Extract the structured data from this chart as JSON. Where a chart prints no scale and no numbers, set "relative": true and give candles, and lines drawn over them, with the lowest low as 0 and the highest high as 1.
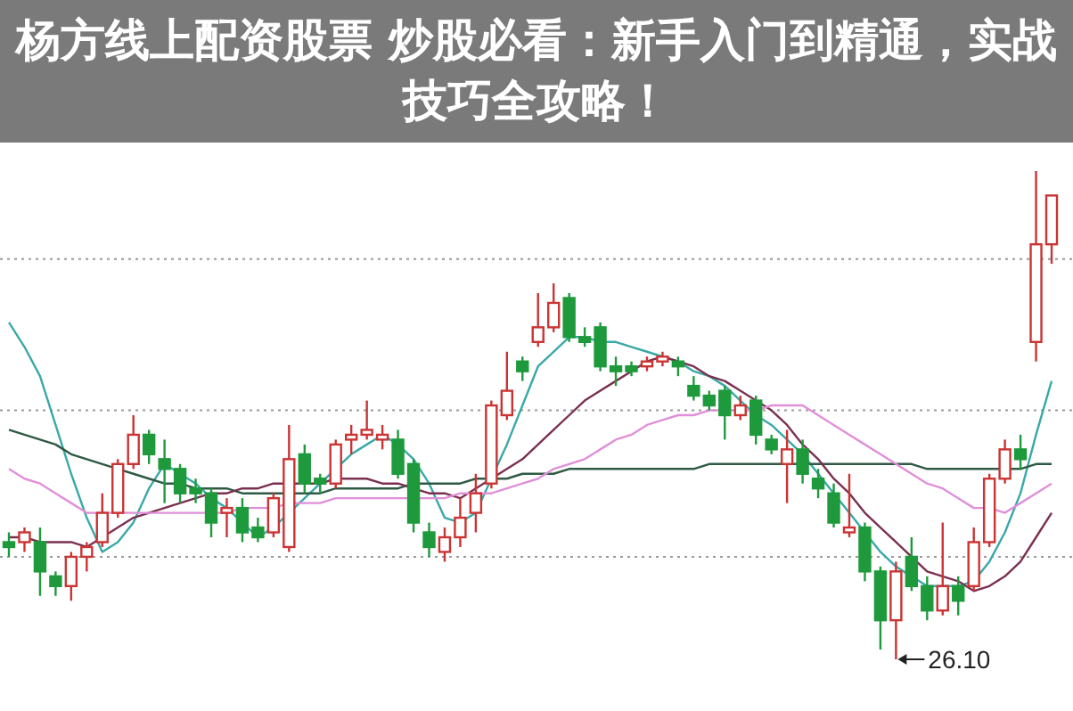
{
  "chart_data": {
    "type": "candlestick",
    "title": "杨方线上配资股票 炒股必看：新手入门到精通，实战技巧全攻略！",
    "relative": true,
    "categories": [
      null,
      null,
      null,
      null,
      null,
      null,
      null,
      null,
      null,
      null,
      null,
      null,
      null,
      null,
      null,
      null,
      null,
      null,
      null,
      null,
      null,
      null,
      null,
      null,
      null,
      null,
      null,
      null,
      null,
      null,
      null,
      null,
      null,
      null,
      null,
      null,
      null,
      null,
      null,
      null,
      null,
      null,
      null,
      null,
      null,
      null,
      null,
      null,
      null,
      null,
      null,
      null,
      null,
      null,
      null,
      null,
      null,
      null,
      null,
      null,
      null,
      null,
      null,
      null,
      null,
      null,
      null,
      null
    ],
    "ohlc": [
      [
        0.24,
        0.26,
        0.21,
        0.23
      ],
      [
        0.24,
        0.27,
        0.22,
        0.26
      ],
      [
        0.24,
        0.27,
        0.13,
        0.18
      ],
      [
        0.17,
        0.18,
        0.13,
        0.15
      ],
      [
        0.15,
        0.22,
        0.12,
        0.21
      ],
      [
        0.21,
        0.24,
        0.18,
        0.23
      ],
      [
        0.24,
        0.34,
        0.23,
        0.3
      ],
      [
        0.3,
        0.41,
        0.29,
        0.4
      ],
      [
        0.4,
        0.5,
        0.39,
        0.46
      ],
      [
        0.46,
        0.47,
        0.4,
        0.42
      ],
      [
        0.41,
        0.45,
        0.32,
        0.39
      ],
      [
        0.39,
        0.4,
        0.32,
        0.34
      ],
      [
        0.35,
        0.37,
        0.32,
        0.34
      ],
      [
        0.34,
        0.35,
        0.25,
        0.28
      ],
      [
        0.3,
        0.33,
        0.25,
        0.31
      ],
      [
        0.31,
        0.33,
        0.24,
        0.26
      ],
      [
        0.27,
        0.29,
        0.24,
        0.25
      ],
      [
        0.26,
        0.34,
        0.25,
        0.33
      ],
      [
        0.23,
        0.48,
        0.22,
        0.41
      ],
      [
        0.42,
        0.44,
        0.34,
        0.36
      ],
      [
        0.37,
        0.38,
        0.34,
        0.36
      ],
      [
        0.36,
        0.45,
        0.35,
        0.44
      ],
      [
        0.45,
        0.48,
        0.42,
        0.46
      ],
      [
        0.46,
        0.53,
        0.45,
        0.47
      ],
      [
        0.45,
        0.48,
        0.43,
        0.46
      ],
      [
        0.45,
        0.47,
        0.37,
        0.38
      ],
      [
        0.4,
        0.41,
        0.26,
        0.28
      ],
      [
        0.26,
        0.28,
        0.21,
        0.23
      ],
      [
        0.22,
        0.27,
        0.2,
        0.25
      ],
      [
        0.25,
        0.33,
        0.23,
        0.29
      ],
      [
        0.3,
        0.38,
        0.26,
        0.34
      ],
      [
        0.36,
        0.53,
        0.35,
        0.52
      ],
      [
        0.5,
        0.63,
        0.49,
        0.55
      ],
      [
        0.61,
        0.62,
        0.57,
        0.59
      ],
      [
        0.65,
        0.75,
        0.64,
        0.68
      ],
      [
        0.68,
        0.77,
        0.67,
        0.73
      ],
      [
        0.74,
        0.75,
        0.65,
        0.66
      ],
      [
        0.66,
        0.68,
        0.64,
        0.65
      ],
      [
        0.68,
        0.69,
        0.59,
        0.6
      ],
      [
        0.6,
        0.62,
        0.56,
        0.59
      ],
      [
        0.6,
        0.61,
        0.58,
        0.59
      ],
      [
        0.6,
        0.62,
        0.59,
        0.61
      ],
      [
        0.61,
        0.63,
        0.6,
        0.62
      ],
      [
        0.61,
        0.62,
        0.58,
        0.6
      ],
      [
        0.56,
        0.58,
        0.53,
        0.54
      ],
      [
        0.54,
        0.55,
        0.51,
        0.52
      ],
      [
        0.55,
        0.56,
        0.45,
        0.5
      ],
      [
        0.5,
        0.54,
        0.49,
        0.52
      ],
      [
        0.53,
        0.54,
        0.44,
        0.46
      ],
      [
        0.45,
        0.46,
        0.42,
        0.43
      ],
      [
        0.4,
        0.47,
        0.32,
        0.43
      ],
      [
        0.43,
        0.45,
        0.36,
        0.38
      ],
      [
        0.37,
        0.39,
        0.33,
        0.35
      ],
      [
        0.34,
        0.36,
        0.27,
        0.28
      ],
      [
        0.26,
        0.38,
        0.25,
        0.27
      ],
      [
        0.27,
        0.28,
        0.16,
        0.18
      ],
      [
        0.18,
        0.19,
        0.02,
        0.08
      ],
      [
        0.08,
        0.2,
        0,
        0.18
      ],
      [
        0.21,
        0.25,
        0.14,
        0.15
      ],
      [
        0.15,
        0.17,
        0.08,
        0.1
      ],
      [
        0.1,
        0.28,
        0.09,
        0.15
      ],
      [
        0.15,
        0.17,
        0.09,
        0.12
      ],
      [
        0.15,
        0.27,
        0.14,
        0.24
      ],
      [
        0.24,
        0.38,
        0.23,
        0.37
      ],
      [
        0.37,
        0.45,
        0.36,
        0.43
      ],
      [
        0.43,
        0.46,
        0.39,
        0.41
      ],
      [
        0.65,
        1,
        0.61,
        0.85
      ],
      [
        0.85,
        0.95,
        0.81,
        0.95
      ]
    ],
    "series": [
      {
        "type": "line",
        "color": "#3aa8a8",
        "values": [
          0.69,
          0.64,
          0.58,
          0.48,
          0.38,
          0.29,
          0.22,
          0.24,
          0.28,
          0.35,
          0.4,
          0.38,
          0.36,
          0.33,
          0.31,
          0.28,
          0.25,
          0.27,
          0.3,
          0.33,
          0.36,
          0.39,
          0.42,
          0.44,
          0.46,
          0.44,
          0.41,
          0.36,
          0.29,
          0.28,
          0.3,
          0.37,
          0.44,
          0.52,
          0.6,
          0.63,
          0.66,
          0.66,
          0.65,
          0.65,
          0.64,
          0.63,
          0.62,
          0.61,
          0.59,
          0.58,
          0.56,
          0.53,
          0.5,
          0.48,
          0.45,
          0.42,
          0.38,
          0.34,
          0.3,
          0.26,
          0.22,
          0.19,
          0.17,
          0.15,
          0.15,
          0.15,
          0.16,
          0.2,
          0.26,
          0.34,
          0.46,
          0.57
        ]
      },
      {
        "type": "line",
        "color": "#2e5a44",
        "values": [
          0.47,
          0.46,
          0.45,
          0.44,
          0.42,
          0.41,
          0.4,
          0.39,
          0.38,
          0.37,
          0.36,
          0.36,
          0.35,
          0.35,
          0.35,
          0.34,
          0.34,
          0.34,
          0.34,
          0.34,
          0.34,
          0.35,
          0.35,
          0.35,
          0.35,
          0.35,
          0.36,
          0.36,
          0.36,
          0.36,
          0.37,
          0.37,
          0.37,
          0.38,
          0.38,
          0.38,
          0.39,
          0.39,
          0.39,
          0.39,
          0.39,
          0.39,
          0.39,
          0.39,
          0.39,
          0.4,
          0.4,
          0.4,
          0.4,
          0.4,
          0.4,
          0.4,
          0.4,
          0.4,
          0.4,
          0.4,
          0.4,
          0.4,
          0.4,
          0.39,
          0.39,
          0.39,
          0.39,
          0.39,
          0.39,
          0.39,
          0.4,
          0.4
        ]
      },
      {
        "type": "line",
        "color": "#7a3050",
        "values": [
          0.25,
          0.25,
          0.24,
          0.24,
          0.24,
          0.23,
          0.25,
          0.27,
          0.29,
          0.3,
          0.31,
          0.32,
          0.33,
          0.34,
          0.34,
          0.35,
          0.35,
          0.36,
          0.36,
          0.36,
          0.36,
          0.37,
          0.37,
          0.37,
          0.36,
          0.36,
          0.35,
          0.34,
          0.34,
          0.33,
          0.35,
          0.37,
          0.39,
          0.41,
          0.44,
          0.47,
          0.5,
          0.53,
          0.55,
          0.57,
          0.59,
          0.61,
          0.62,
          0.61,
          0.6,
          0.58,
          0.57,
          0.55,
          0.53,
          0.51,
          0.48,
          0.44,
          0.41,
          0.37,
          0.34,
          0.3,
          0.27,
          0.24,
          0.21,
          0.18,
          0.17,
          0.16,
          0.14,
          0.15,
          0.17,
          0.2,
          0.25,
          0.3
        ]
      },
      {
        "type": "line",
        "color": "#e090d8",
        "values": [
          0.39,
          0.37,
          0.36,
          0.34,
          0.32,
          0.3,
          0.3,
          0.3,
          0.3,
          0.3,
          0.3,
          0.3,
          0.3,
          0.3,
          0.3,
          0.31,
          0.31,
          0.31,
          0.32,
          0.32,
          0.32,
          0.33,
          0.33,
          0.33,
          0.33,
          0.33,
          0.33,
          0.33,
          0.33,
          0.34,
          0.34,
          0.34,
          0.35,
          0.36,
          0.37,
          0.39,
          0.4,
          0.41,
          0.43,
          0.45,
          0.46,
          0.48,
          0.49,
          0.5,
          0.5,
          0.51,
          0.51,
          0.51,
          0.51,
          0.52,
          0.52,
          0.52,
          0.5,
          0.48,
          0.46,
          0.44,
          0.42,
          0.4,
          0.38,
          0.36,
          0.35,
          0.33,
          0.31,
          0.31,
          0.3,
          0.32,
          0.34,
          0.36
        ]
      }
    ],
    "ref_lines": [
      {
        "axis": "y",
        "value": 0.82,
        "color": "#999999",
        "line_style": "dotted"
      },
      {
        "axis": "y",
        "value": 0.51,
        "color": "#999999",
        "line_style": "dotted"
      },
      {
        "axis": "y",
        "value": 0.21,
        "color": "#999999",
        "line_style": "dotted"
      }
    ],
    "annotations": [
      "26.10"
    ]
  }
}
